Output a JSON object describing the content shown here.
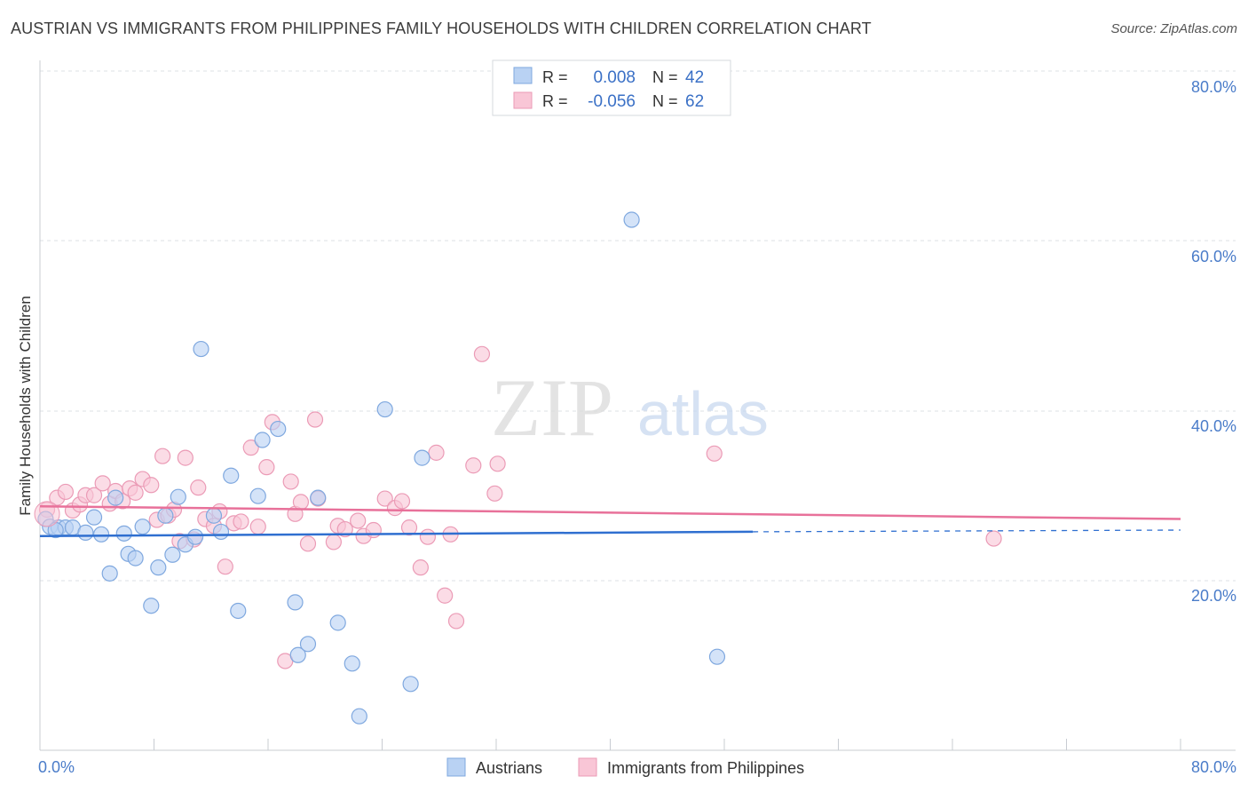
{
  "title": "AUSTRIAN VS IMMIGRANTS FROM PHILIPPINES FAMILY HOUSEHOLDS WITH CHILDREN CORRELATION CHART",
  "source": "Source: ZipAtlas.com",
  "watermark": {
    "zip": "ZIP",
    "atlas": "atlas"
  },
  "legend_box": {
    "rows": [
      {
        "r_label": "R =",
        "r_value": "0.008",
        "n_label": "N =",
        "n_value": "42"
      },
      {
        "r_label": "R =",
        "r_value": "-0.056",
        "n_label": "N =",
        "n_value": "62"
      }
    ]
  },
  "colors": {
    "blue_fill": "#b9d2f3",
    "blue_stroke": "#7fa8df",
    "blue_line": "#2f6fd0",
    "pink_fill": "#f9c6d6",
    "pink_stroke": "#eb9bb6",
    "pink_line": "#e8719a",
    "tick_text": "#4a7cc9",
    "grid": "#dde1e6"
  },
  "chart_data": {
    "type": "scatter",
    "title": "AUSTRIAN VS IMMIGRANTS FROM PHILIPPINES FAMILY HOUSEHOLDS WITH CHILDREN CORRELATION CHART",
    "xlabel": "",
    "ylabel": "Family Households with Children",
    "xlim": [
      0,
      80
    ],
    "ylim": [
      0,
      82
    ],
    "x_tick_labels": [
      "0.0%",
      "80.0%"
    ],
    "y_ticks": [
      20,
      40,
      60,
      80
    ],
    "y_tick_labels": [
      "20.0%",
      "40.0%",
      "60.0%",
      "80.0%"
    ],
    "grid": true,
    "legend_position": "bottom-center",
    "series": [
      {
        "name": "Austrians",
        "r": 0.008,
        "n": 42,
        "trend": {
          "x0": 0,
          "y0": 25.2,
          "x1": 50,
          "y1": 25.7,
          "dash_to_x": 80,
          "dash_to_y": 25.9
        },
        "points": [
          [
            0.4,
            27.2
          ],
          [
            0.7,
            26.3
          ],
          [
            1.3,
            26.2
          ],
          [
            1.8,
            26.2
          ],
          [
            2.3,
            26.2
          ],
          [
            3.2,
            25.6
          ],
          [
            3.8,
            27.4
          ],
          [
            4.3,
            25.4
          ],
          [
            4.9,
            20.8
          ],
          [
            5.3,
            29.7
          ],
          [
            5.9,
            25.5
          ],
          [
            6.2,
            23.1
          ],
          [
            6.7,
            22.6
          ],
          [
            7.2,
            26.3
          ],
          [
            7.8,
            17.0
          ],
          [
            8.3,
            21.5
          ],
          [
            8.8,
            27.6
          ],
          [
            9.3,
            23.0
          ],
          [
            9.7,
            29.8
          ],
          [
            10.2,
            24.2
          ],
          [
            10.9,
            25.1
          ],
          [
            11.3,
            47.2
          ],
          [
            12.2,
            27.6
          ],
          [
            12.7,
            25.7
          ],
          [
            13.4,
            32.3
          ],
          [
            13.9,
            16.4
          ],
          [
            15.3,
            29.9
          ],
          [
            15.6,
            36.5
          ],
          [
            16.7,
            37.8
          ],
          [
            17.9,
            17.4
          ],
          [
            18.1,
            11.2
          ],
          [
            18.8,
            12.5
          ],
          [
            19.5,
            29.7
          ],
          [
            20.9,
            15.0
          ],
          [
            21.9,
            10.2
          ],
          [
            22.4,
            4.0
          ],
          [
            24.2,
            40.1
          ],
          [
            26.0,
            7.8
          ],
          [
            26.8,
            34.4
          ],
          [
            41.5,
            62.4
          ],
          [
            47.5,
            11.0
          ],
          [
            1.1,
            25.9
          ]
        ]
      },
      {
        "name": "Immigrants from Philippines",
        "r": -0.056,
        "n": 62,
        "trend": {
          "x0": 0,
          "y0": 28.7,
          "x1": 80,
          "y1": 27.2
        },
        "points": [
          [
            0.5,
            28.3
          ],
          [
            1.2,
            29.7
          ],
          [
            1.8,
            30.4
          ],
          [
            2.3,
            28.2
          ],
          [
            2.8,
            28.9
          ],
          [
            3.2,
            30.0
          ],
          [
            3.8,
            30.0
          ],
          [
            4.4,
            31.4
          ],
          [
            4.9,
            29.0
          ],
          [
            5.3,
            30.5
          ],
          [
            5.8,
            29.3
          ],
          [
            6.3,
            30.8
          ],
          [
            6.7,
            30.3
          ],
          [
            7.2,
            31.9
          ],
          [
            7.8,
            31.2
          ],
          [
            8.2,
            27.1
          ],
          [
            8.6,
            34.6
          ],
          [
            9.0,
            27.6
          ],
          [
            9.4,
            28.3
          ],
          [
            9.8,
            24.6
          ],
          [
            10.2,
            34.4
          ],
          [
            10.8,
            24.8
          ],
          [
            11.1,
            30.9
          ],
          [
            11.6,
            27.2
          ],
          [
            12.2,
            26.4
          ],
          [
            12.6,
            28.1
          ],
          [
            13.0,
            21.6
          ],
          [
            13.6,
            26.7
          ],
          [
            14.1,
            26.9
          ],
          [
            14.8,
            35.6
          ],
          [
            15.3,
            26.3
          ],
          [
            15.9,
            33.3
          ],
          [
            16.3,
            38.6
          ],
          [
            17.2,
            10.5
          ],
          [
            17.6,
            31.6
          ],
          [
            17.9,
            27.8
          ],
          [
            18.3,
            29.2
          ],
          [
            18.8,
            24.3
          ],
          [
            19.3,
            38.9
          ],
          [
            19.5,
            29.6
          ],
          [
            20.6,
            24.5
          ],
          [
            20.9,
            26.4
          ],
          [
            21.4,
            26.0
          ],
          [
            22.3,
            27.0
          ],
          [
            22.7,
            25.2
          ],
          [
            23.4,
            25.9
          ],
          [
            24.2,
            29.6
          ],
          [
            24.9,
            28.5
          ],
          [
            25.4,
            29.3
          ],
          [
            25.9,
            26.2
          ],
          [
            26.7,
            21.5
          ],
          [
            27.2,
            25.1
          ],
          [
            27.8,
            35.0
          ],
          [
            28.4,
            18.2
          ],
          [
            28.8,
            25.4
          ],
          [
            29.2,
            15.2
          ],
          [
            30.4,
            33.5
          ],
          [
            31.0,
            46.6
          ],
          [
            31.9,
            30.2
          ],
          [
            32.1,
            33.7
          ],
          [
            47.3,
            34.9
          ],
          [
            66.9,
            24.9
          ]
        ]
      }
    ]
  }
}
